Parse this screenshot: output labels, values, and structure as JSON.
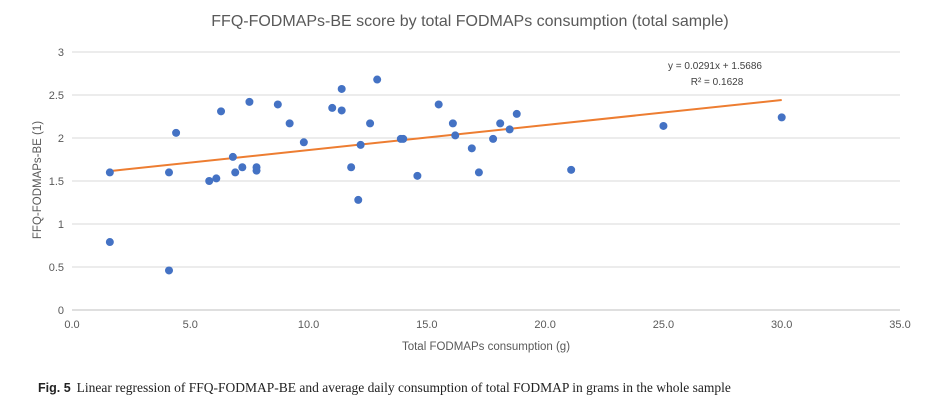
{
  "chart_data": {
    "type": "scatter",
    "title": "FFQ-FODMAPs-BE score by total FODMAPs consumption (total sample)",
    "xlabel": "Total FODMAPs consumption (g)",
    "ylabel": "FFQ-FODMAPs-BE (1)",
    "xlim": [
      0,
      35
    ],
    "ylim": [
      0,
      3
    ],
    "x_ticks": [
      "0.0",
      "5.0",
      "10.0",
      "15.0",
      "20.0",
      "25.0",
      "30.0",
      "35.0"
    ],
    "y_ticks": [
      "0",
      "0.5",
      "1",
      "1.5",
      "2",
      "2.5",
      "3"
    ],
    "grid": "horizontal",
    "point_color": "#4472C4",
    "trendline_color": "#ED7D31",
    "points": [
      {
        "x": 1.6,
        "y": 1.6
      },
      {
        "x": 1.6,
        "y": 0.79
      },
      {
        "x": 4.1,
        "y": 1.6
      },
      {
        "x": 4.1,
        "y": 0.46
      },
      {
        "x": 4.4,
        "y": 2.06
      },
      {
        "x": 5.8,
        "y": 1.5
      },
      {
        "x": 6.1,
        "y": 1.53
      },
      {
        "x": 6.3,
        "y": 2.31
      },
      {
        "x": 6.8,
        "y": 1.78
      },
      {
        "x": 6.9,
        "y": 1.6
      },
      {
        "x": 7.2,
        "y": 1.66
      },
      {
        "x": 7.5,
        "y": 2.42
      },
      {
        "x": 7.8,
        "y": 1.66
      },
      {
        "x": 7.8,
        "y": 1.62
      },
      {
        "x": 8.7,
        "y": 2.39
      },
      {
        "x": 9.2,
        "y": 2.17
      },
      {
        "x": 9.8,
        "y": 1.95
      },
      {
        "x": 11.0,
        "y": 2.35
      },
      {
        "x": 11.4,
        "y": 2.32
      },
      {
        "x": 11.4,
        "y": 2.57
      },
      {
        "x": 11.8,
        "y": 1.66
      },
      {
        "x": 12.1,
        "y": 1.28
      },
      {
        "x": 12.2,
        "y": 1.92
      },
      {
        "x": 12.6,
        "y": 2.17
      },
      {
        "x": 12.9,
        "y": 2.68
      },
      {
        "x": 13.9,
        "y": 1.99
      },
      {
        "x": 14.0,
        "y": 1.99
      },
      {
        "x": 14.6,
        "y": 1.56
      },
      {
        "x": 15.5,
        "y": 2.39
      },
      {
        "x": 16.1,
        "y": 2.17
      },
      {
        "x": 16.2,
        "y": 2.03
      },
      {
        "x": 16.9,
        "y": 1.88
      },
      {
        "x": 17.2,
        "y": 1.6
      },
      {
        "x": 17.8,
        "y": 1.99
      },
      {
        "x": 18.1,
        "y": 2.17
      },
      {
        "x": 18.5,
        "y": 2.1
      },
      {
        "x": 18.8,
        "y": 2.28
      },
      {
        "x": 21.1,
        "y": 1.63
      },
      {
        "x": 25.0,
        "y": 2.14
      },
      {
        "x": 30.0,
        "y": 2.24
      }
    ],
    "trendline": {
      "slope": 0.0291,
      "intercept": 1.5686,
      "x_range": [
        1.6,
        30.0
      ],
      "equation": "y = 0.0291x + 1.5686",
      "r2": "R² = 0.1628"
    }
  },
  "caption": {
    "label": "Fig. 5",
    "text": "Linear regression of FFQ-FODMAP-BE and average daily consumption of total FODMAP in grams in the whole sample"
  }
}
